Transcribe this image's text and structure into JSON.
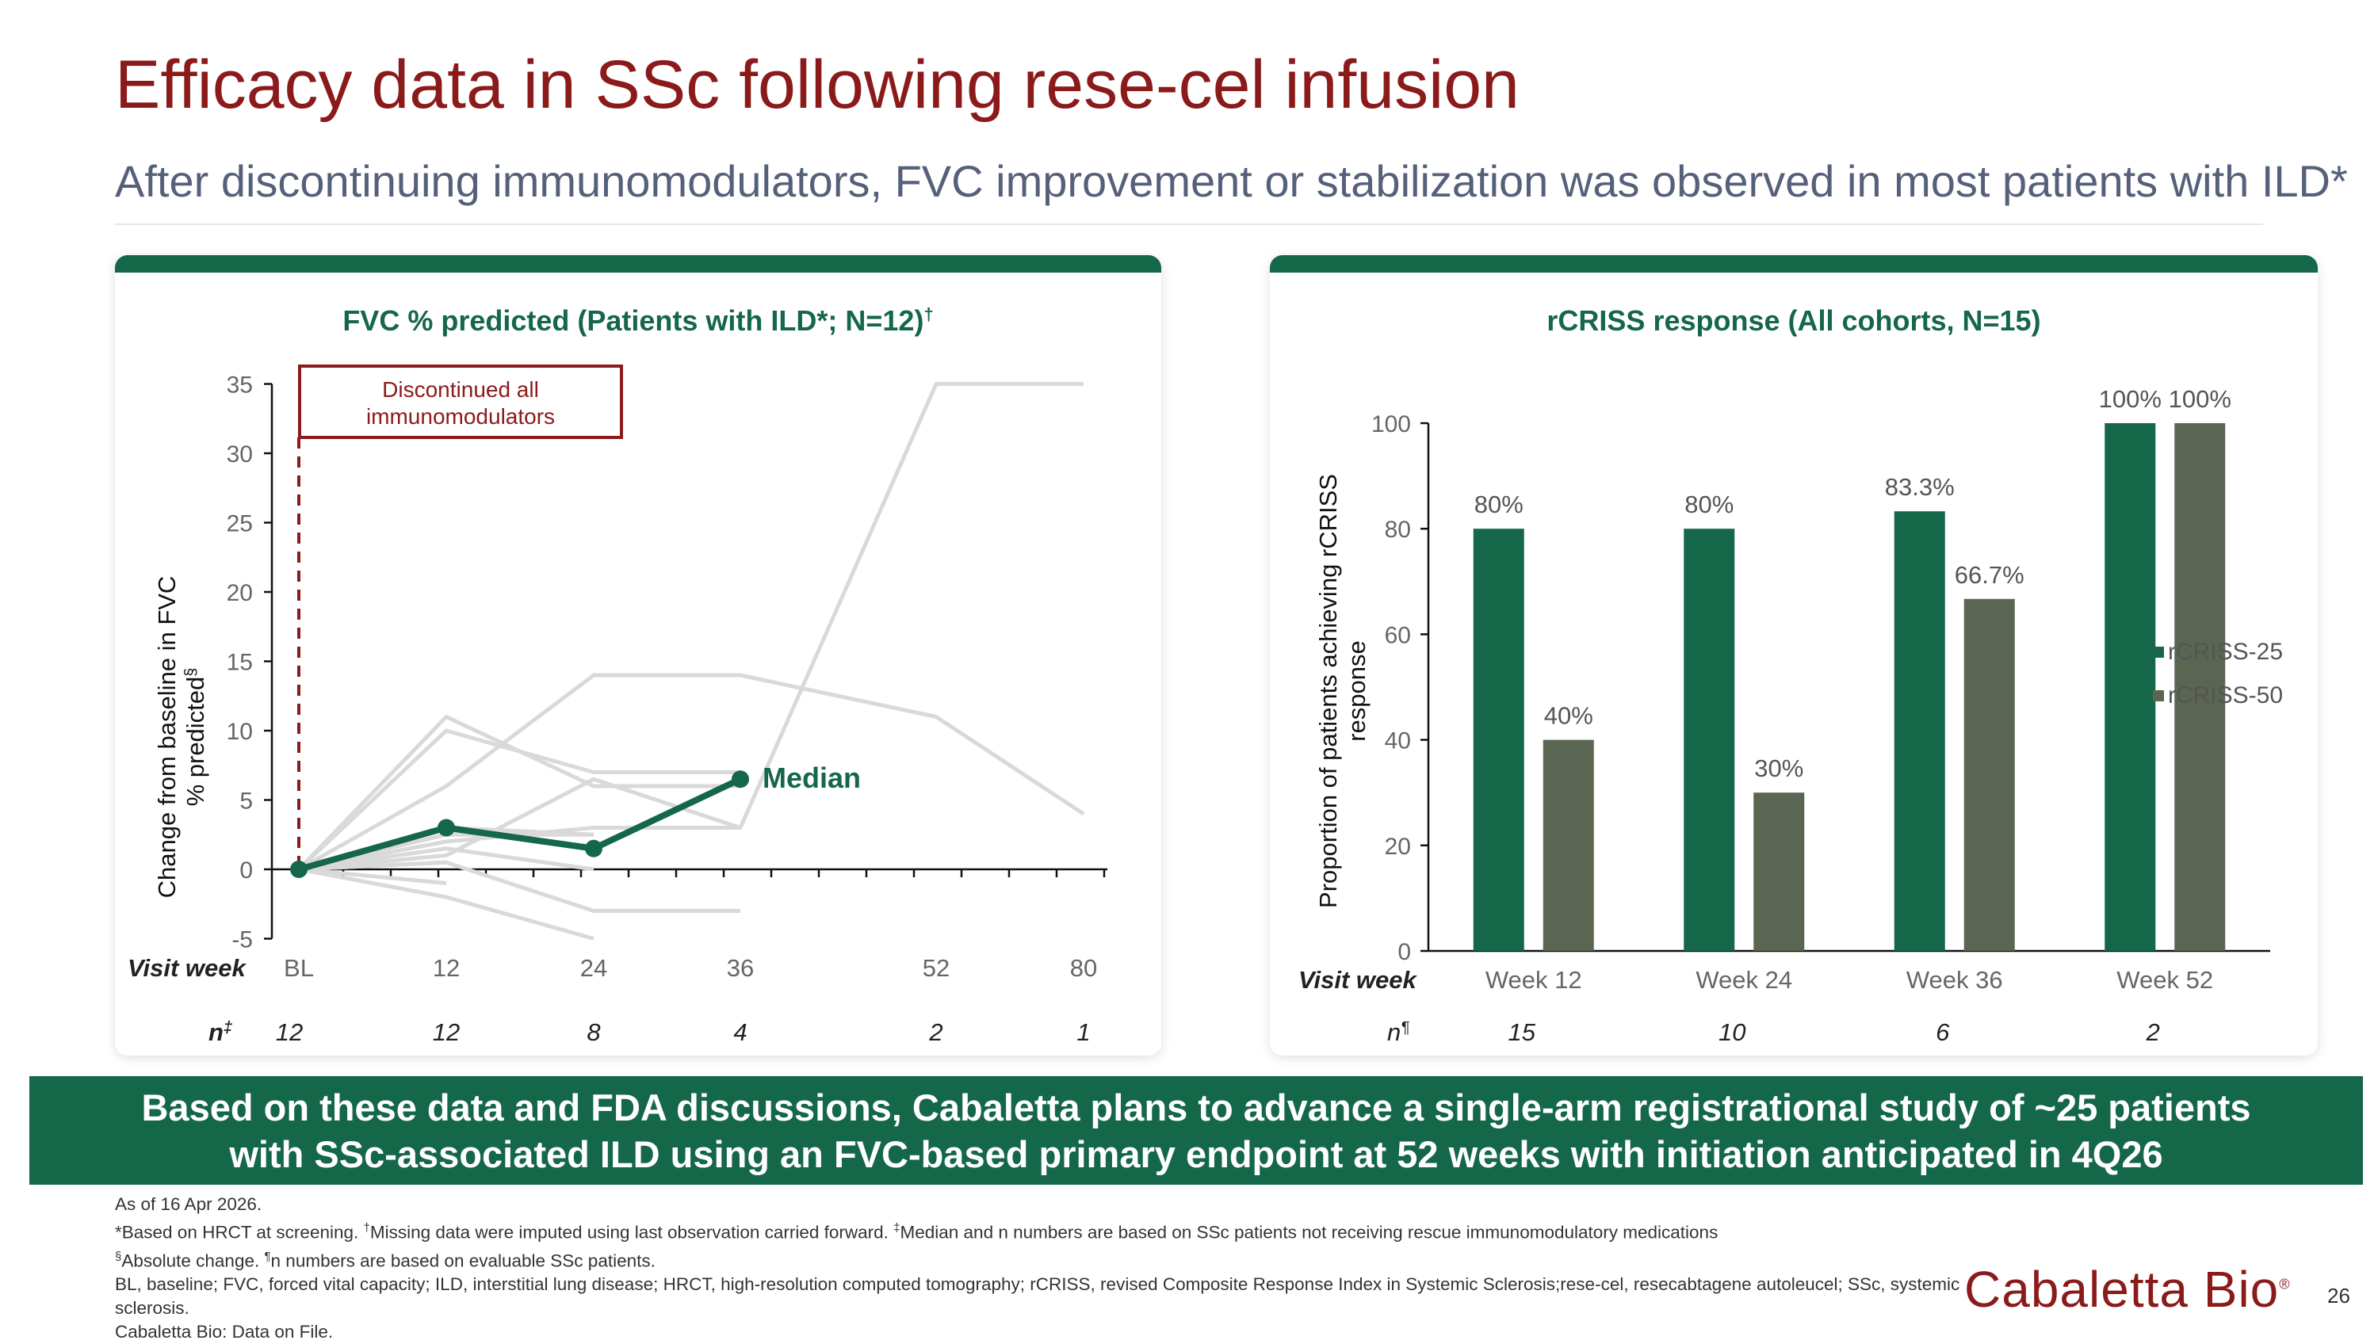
{
  "slide": {
    "title": "Efficacy data in SSc following rese-cel infusion",
    "subtitle": "After discontinuing immunomodulators, FVC improvement or stabilization was observed in most patients with ILD*",
    "page_number": "26",
    "logo_text": "Cabaletta Bio",
    "logo_mark": "®"
  },
  "colors": {
    "brand_green": "#156749",
    "dark_gray_green": "#5a6652",
    "title_red": "#8b1a1a",
    "individual_line": "#d9d9d9"
  },
  "left_panel": {
    "title": "FVC % predicted (Patients with ILD*; N=12)",
    "title_mark": "†",
    "ylabel_line1": "Change from baseline in FVC",
    "ylabel_line2": "% predicted",
    "ylabel_mark": "§",
    "visit_label": "Visit week",
    "n_label": "n",
    "n_mark": "‡",
    "annotation_line1": "Discontinued all",
    "annotation_line2": "immunomodulators",
    "median_label": "Median",
    "n_values": [
      "12",
      "12",
      "8",
      "4",
      "2",
      "1"
    ]
  },
  "right_panel": {
    "title": "rCRISS response (All cohorts, N=15)",
    "ylabel_line1": "Proportion of patients achieving rCRISS",
    "ylabel_line2": "response",
    "visit_label": "Visit week",
    "n_label": "n",
    "n_mark": "¶",
    "n_values": [
      "15",
      "10",
      "6",
      "2"
    ]
  },
  "chart_data": [
    {
      "type": "line",
      "title": "FVC % predicted (Patients with ILD*; N=12)†",
      "xlabel": "Visit week",
      "ylabel": "Change from baseline in FVC % predicted§",
      "x_ticks": [
        "BL",
        "12",
        "24",
        "36",
        "52",
        "80"
      ],
      "x_weeks": [
        0,
        12,
        24,
        36,
        52,
        80
      ],
      "ylim": [
        -5,
        35
      ],
      "y_ticks": [
        -5,
        0,
        5,
        10,
        15,
        20,
        25,
        30,
        35
      ],
      "median": {
        "name": "Median",
        "x": [
          0,
          12,
          24,
          36
        ],
        "y": [
          0,
          3,
          1.5,
          6.5
        ]
      },
      "individual_series": [
        {
          "x": [
            0,
            12,
            24,
            36,
            52,
            80
          ],
          "y": [
            0,
            1,
            6.5,
            3,
            35,
            35
          ]
        },
        {
          "x": [
            0,
            12,
            24,
            36,
            52,
            80
          ],
          "y": [
            0,
            6,
            14,
            14,
            11,
            4
          ]
        },
        {
          "x": [
            0,
            12,
            24,
            36
          ],
          "y": [
            0,
            11,
            6,
            6
          ]
        },
        {
          "x": [
            0,
            12,
            24,
            36
          ],
          "y": [
            0,
            10,
            7,
            7
          ]
        },
        {
          "x": [
            0,
            12,
            24,
            36
          ],
          "y": [
            0,
            2,
            3,
            3
          ]
        },
        {
          "x": [
            0,
            12,
            24
          ],
          "y": [
            0,
            3,
            2.5
          ]
        },
        {
          "x": [
            0,
            12,
            24
          ],
          "y": [
            0,
            1.5,
            0
          ]
        },
        {
          "x": [
            0,
            12,
            24
          ],
          "y": [
            0,
            -2,
            -5
          ]
        },
        {
          "x": [
            0,
            12,
            24,
            36
          ],
          "y": [
            0,
            0.5,
            -3,
            -3
          ]
        },
        {
          "x": [
            0,
            12
          ],
          "y": [
            0,
            -1
          ]
        },
        {
          "x": [
            0,
            12,
            24
          ],
          "y": [
            0,
            2.5,
            2.5
          ]
        },
        {
          "x": [
            0,
            12
          ],
          "y": [
            0,
            0.5
          ]
        }
      ],
      "annotation": "Discontinued all immunomodulators",
      "annotation_x": 0
    },
    {
      "type": "bar",
      "title": "rCRISS response (All cohorts, N=15)",
      "ylabel": "Proportion of patients achieving rCRISS response",
      "categories": [
        "Week 12",
        "Week 24",
        "Week 36",
        "Week 52"
      ],
      "ylim": [
        0,
        100
      ],
      "y_ticks": [
        0,
        20,
        40,
        60,
        80,
        100
      ],
      "legend_position": "right",
      "series": [
        {
          "name": "rCRISS-25",
          "values": [
            80,
            80,
            83.3,
            100
          ],
          "labels": [
            "80%",
            "80%",
            "83.3%",
            "100%"
          ],
          "color": "#156749"
        },
        {
          "name": "rCRISS-50",
          "values": [
            40,
            30,
            66.7,
            100
          ],
          "labels": [
            "40%",
            "30%",
            "66.7%",
            "100%"
          ],
          "color": "#5a6652"
        }
      ]
    }
  ],
  "banner": {
    "line1": "Based on these data and FDA discussions, Cabaletta plans to advance a single-arm registrational study of ~25 patients",
    "line2": "with SSc-associated ILD using an FVC-based primary endpoint at 52 weeks with initiation anticipated in 4Q26"
  },
  "footnotes": {
    "line1": "As of 16 Apr 2026.",
    "line2a": "*Based on HRCT at screening. ",
    "mark_dagger": "†",
    "line2b": "Missing data were imputed using last observation carried forward. ",
    "mark_ddagger": "‡",
    "line2c": "Median and n numbers are based on SSc patients not receiving rescue immunomodulatory medications",
    "mark_section": "§",
    "line3a": "Absolute change. ",
    "mark_pilcrow": "¶",
    "line3b": "n numbers are based on evaluable SSc patients.",
    "line4": "BL, baseline; FVC, forced vital capacity; ILD, interstitial lung disease; HRCT, high-resolution computed tomography; rCRISS, revised Composite Response Index in Systemic Sclerosis;rese-cel, resecabtagene autoleucel; SSc, systemic sclerosis.",
    "line5": "Cabaletta Bio: Data on File."
  }
}
